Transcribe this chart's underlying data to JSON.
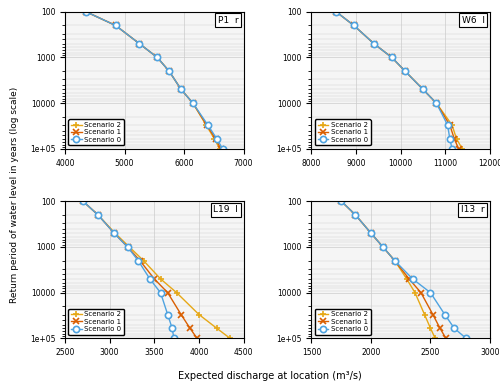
{
  "subplots": [
    {
      "title": "P1  r",
      "xlim": [
        4000,
        7000
      ],
      "xticks": [
        4000,
        5000,
        6000,
        7000
      ],
      "scenario0": {
        "x": [
          4350,
          4850,
          5250,
          5550,
          5750,
          5950,
          6150,
          6400,
          6550,
          6650
        ],
        "y": [
          100,
          200,
          500,
          1000,
          2000,
          5000,
          10000,
          30000,
          60000,
          100000
        ]
      },
      "scenario1": {
        "x": [
          4350,
          4850,
          5250,
          5550,
          5750,
          5950,
          6150,
          6380,
          6530,
          6620
        ],
        "y": [
          100,
          200,
          500,
          1000,
          2000,
          5000,
          10000,
          30000,
          60000,
          100000
        ]
      },
      "scenario2": {
        "x": [
          4350,
          4850,
          5250,
          5550,
          5750,
          5950,
          6150,
          6370,
          6510,
          6600
        ],
        "y": [
          100,
          200,
          500,
          1000,
          2000,
          5000,
          10000,
          30000,
          60000,
          100000
        ]
      }
    },
    {
      "title": "W6  l",
      "xlim": [
        8000,
        12000
      ],
      "xticks": [
        8000,
        9000,
        10000,
        11000,
        12000
      ],
      "scenario0": {
        "x": [
          8550,
          8950,
          9400,
          9800,
          10100,
          10500,
          10800,
          11050,
          11100,
          11150
        ],
        "y": [
          100,
          200,
          500,
          1000,
          2000,
          5000,
          10000,
          30000,
          60000,
          100000
        ]
      },
      "scenario1": {
        "x": [
          8550,
          8950,
          9400,
          9800,
          10100,
          10500,
          10800,
          11100,
          11200,
          11300
        ],
        "y": [
          100,
          200,
          500,
          1000,
          2000,
          5000,
          10000,
          30000,
          60000,
          100000
        ]
      },
      "scenario2": {
        "x": [
          8550,
          8950,
          9400,
          9800,
          10100,
          10500,
          10800,
          11150,
          11250,
          11380
        ],
        "y": [
          100,
          200,
          500,
          1000,
          2000,
          5000,
          10000,
          30000,
          60000,
          100000
        ]
      }
    },
    {
      "title": "L19  l",
      "xlim": [
        2500,
        4500
      ],
      "xticks": [
        2500,
        3000,
        3500,
        4000,
        4500
      ],
      "scenario0": {
        "x": [
          2700,
          2870,
          3050,
          3200,
          3320,
          3450,
          3570,
          3650,
          3700,
          3720
        ],
        "y": [
          100,
          200,
          500,
          1000,
          2000,
          5000,
          10000,
          30000,
          60000,
          100000
        ]
      },
      "scenario1": {
        "x": [
          2700,
          2870,
          3050,
          3200,
          3340,
          3500,
          3650,
          3800,
          3900,
          3980
        ],
        "y": [
          100,
          200,
          500,
          1000,
          2000,
          5000,
          10000,
          30000,
          60000,
          100000
        ]
      },
      "scenario2": {
        "x": [
          2700,
          2870,
          3060,
          3220,
          3380,
          3570,
          3750,
          4000,
          4200,
          4350
        ],
        "y": [
          100,
          200,
          500,
          1000,
          2000,
          5000,
          10000,
          30000,
          60000,
          100000
        ]
      }
    },
    {
      "title": "I13  r",
      "xlim": [
        1500,
        3000
      ],
      "xticks": [
        1500,
        2000,
        2500,
        3000
      ],
      "scenario0": {
        "x": [
          1750,
          1870,
          2000,
          2100,
          2200,
          2350,
          2500,
          2620,
          2700,
          2800
        ],
        "y": [
          100,
          200,
          500,
          1000,
          2000,
          5000,
          10000,
          30000,
          60000,
          100000
        ]
      },
      "scenario1": {
        "x": [
          1750,
          1870,
          2000,
          2100,
          2200,
          2320,
          2420,
          2520,
          2580,
          2630
        ],
        "y": [
          100,
          200,
          500,
          1000,
          2000,
          5000,
          10000,
          30000,
          60000,
          100000
        ]
      },
      "scenario2": {
        "x": [
          1750,
          1870,
          2000,
          2100,
          2200,
          2300,
          2370,
          2450,
          2500,
          2540
        ],
        "y": [
          100,
          200,
          500,
          1000,
          2000,
          5000,
          10000,
          30000,
          60000,
          100000
        ]
      }
    }
  ],
  "scenario0_color": "#4fa3e0",
  "scenario1_color": "#d95f02",
  "scenario2_color": "#e6a817",
  "ylabel": "Return period of water level in years (log scale)",
  "xlabel": "Expected discharge at location (m³/s)",
  "ylim": [
    100,
    100000
  ],
  "yticks": [
    100,
    1000,
    10000,
    100000
  ],
  "grid_color": "#cccccc",
  "bg_color": "#f5f5f5"
}
